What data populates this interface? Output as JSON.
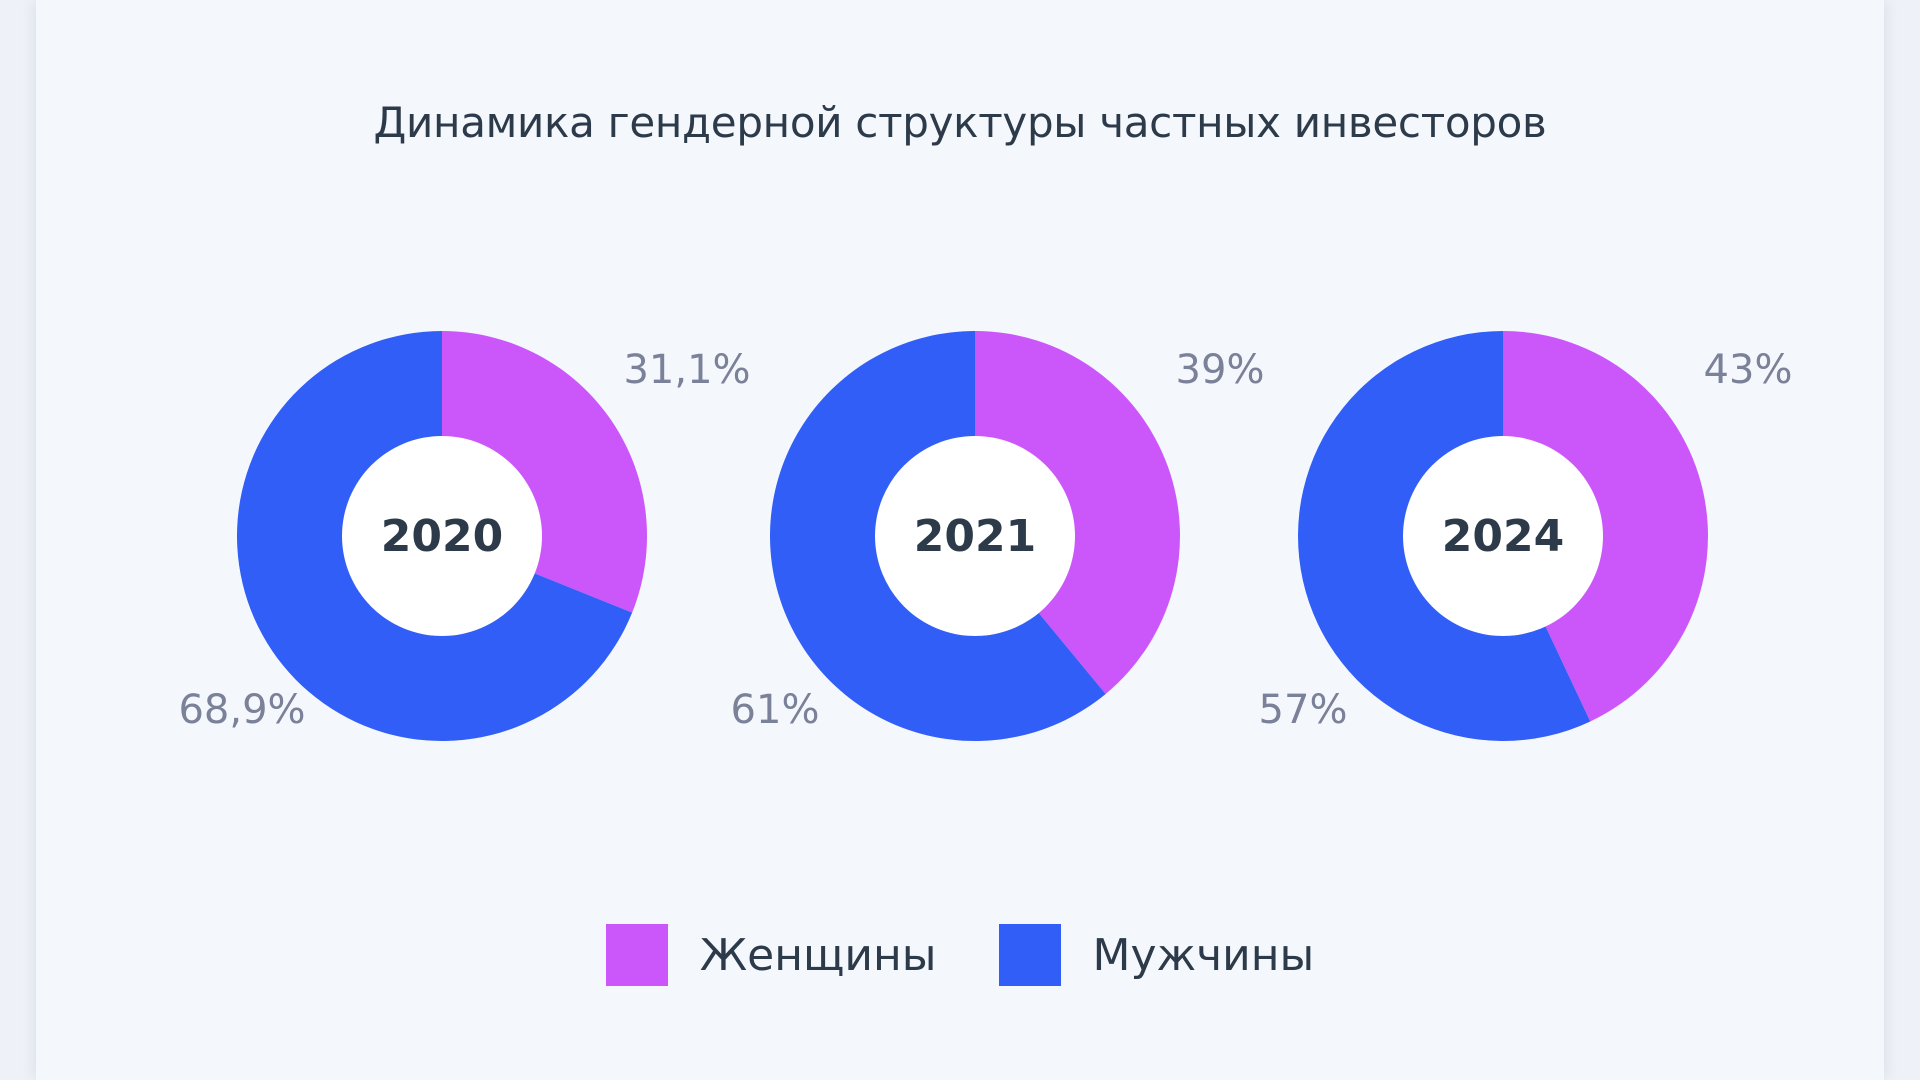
{
  "title": "Динамика гендерной структуры частных инвесторов",
  "colors": {
    "women": "#cb57fb",
    "men": "#315ef7",
    "year_text": "#2c3a4a",
    "pct_text": "#7a8198",
    "hole": "#ffffff"
  },
  "legend": {
    "women_label": "Женщины",
    "men_label": "Мужчины"
  },
  "chart_data": [
    {
      "type": "pie",
      "center_label": "2020",
      "categories": [
        "Женщины",
        "Мужчины"
      ],
      "values": [
        31.1,
        68.9
      ],
      "data_labels": [
        "31,1%",
        "68,9%"
      ]
    },
    {
      "type": "pie",
      "center_label": "2021",
      "categories": [
        "Женщины",
        "Мужчины"
      ],
      "values": [
        39,
        61
      ],
      "data_labels": [
        "39%",
        "61%"
      ]
    },
    {
      "type": "pie",
      "center_label": "2024",
      "categories": [
        "Женщины",
        "Мужчины"
      ],
      "values": [
        43,
        57
      ],
      "data_labels": [
        "43%",
        "57%"
      ]
    }
  ]
}
